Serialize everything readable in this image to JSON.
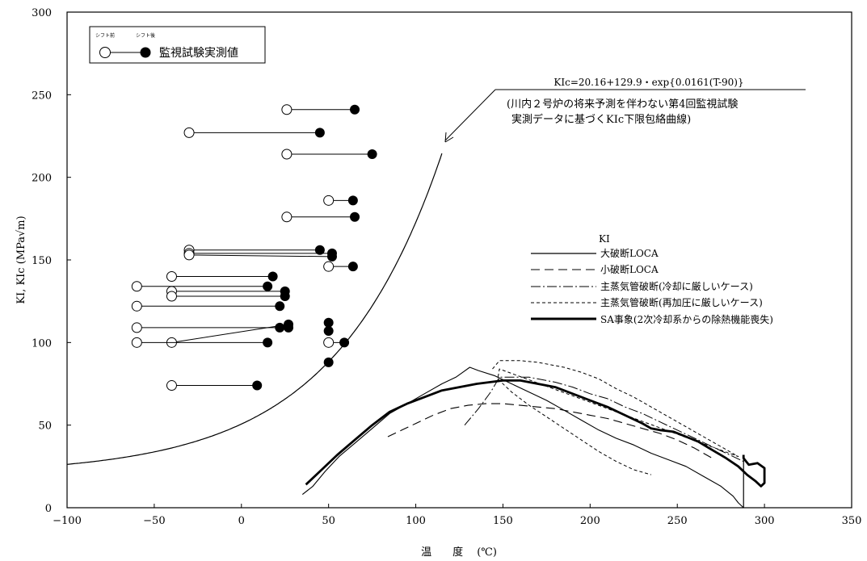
{
  "chart_data": {
    "type": "line",
    "xlabel": "温　　度　 (℃)",
    "ylabel": "KI, KIc (MPa√m)",
    "xlim": [
      -100,
      350
    ],
    "ylim": [
      0,
      300
    ],
    "x_ticks": [
      -100,
      -50,
      0,
      50,
      100,
      150,
      200,
      250,
      300,
      350
    ],
    "y_ticks": [
      0,
      50,
      100,
      150,
      200,
      250,
      300
    ],
    "grid": false,
    "surveillance_legend": {
      "label": "監視試験実測値",
      "before_label": "シフト前",
      "after_label": "シフト後"
    },
    "surveillance_data": [
      {
        "before": [
          26,
          241
        ],
        "after": [
          65,
          241
        ]
      },
      {
        "before": [
          -30,
          227
        ],
        "after": [
          45,
          227
        ]
      },
      {
        "before": [
          26,
          214
        ],
        "after": [
          75,
          214
        ]
      },
      {
        "before": [
          50,
          186
        ],
        "after": [
          64,
          186
        ]
      },
      {
        "before": [
          26,
          176
        ],
        "after": [
          65,
          176
        ]
      },
      {
        "before": [
          -30,
          156
        ],
        "after": [
          45,
          156
        ]
      },
      {
        "before": [
          -30,
          154
        ],
        "after": [
          52,
          154
        ]
      },
      {
        "before": [
          -30,
          153
        ],
        "after": [
          52,
          152
        ]
      },
      {
        "before": [
          50,
          146
        ],
        "after": [
          64,
          146
        ]
      },
      {
        "before": [
          -40,
          140
        ],
        "after": [
          18,
          140
        ]
      },
      {
        "before": [
          -60,
          134
        ],
        "after": [
          15,
          134
        ]
      },
      {
        "before": [
          -40,
          131
        ],
        "after": [
          25,
          131
        ]
      },
      {
        "before": [
          -40,
          128
        ],
        "after": [
          25,
          128
        ]
      },
      {
        "before": [
          -60,
          122
        ],
        "after": [
          22,
          122
        ]
      },
      {
        "before": [
          -60,
          109
        ],
        "after": [
          22,
          109
        ]
      },
      {
        "before": [
          -40,
          100
        ],
        "after": [
          27,
          111
        ]
      },
      {
        "before": [
          -60,
          100
        ],
        "after": [
          15,
          100
        ]
      },
      {
        "before": [
          -40,
          74
        ],
        "after": [
          9,
          74
        ]
      },
      {
        "before": [
          50,
          100
        ],
        "after": [
          59,
          100
        ]
      },
      {
        "after_only": [
          50,
          112
        ]
      },
      {
        "after_only": [
          50,
          107
        ]
      },
      {
        "after_only": [
          50,
          88
        ]
      },
      {
        "after_only": [
          27,
          109
        ]
      }
    ],
    "kic_curve": {
      "formula_label": "KIc=20.16+129.9・exp{0.0161(T-90)}",
      "note_line1": "(川内２号炉の将来予測を伴わない第4回監視試験",
      "note_line2": "実測データに基づくKIc下限包絡曲線)",
      "arrow_tip": [
        115,
        220
      ]
    },
    "legend_title": "KI",
    "series": [
      {
        "name": "大破断LOCA",
        "style": "solid-thin",
        "points": [
          [
            35,
            8
          ],
          [
            41,
            13
          ],
          [
            48,
            22
          ],
          [
            56,
            31
          ],
          [
            65,
            39
          ],
          [
            75,
            48
          ],
          [
            85,
            57
          ],
          [
            95,
            63
          ],
          [
            105,
            69
          ],
          [
            115,
            75
          ],
          [
            123,
            79
          ],
          [
            127,
            82
          ],
          [
            131,
            85
          ],
          [
            136,
            83
          ],
          [
            145,
            80
          ],
          [
            155,
            75
          ],
          [
            165,
            70
          ],
          [
            175,
            65
          ],
          [
            185,
            59
          ],
          [
            195,
            53
          ],
          [
            205,
            47
          ],
          [
            215,
            42
          ],
          [
            225,
            38
          ],
          [
            235,
            33
          ],
          [
            245,
            29
          ],
          [
            255,
            25
          ],
          [
            265,
            19
          ],
          [
            275,
            13
          ],
          [
            282,
            7
          ],
          [
            285,
            3
          ],
          [
            288,
            0
          ]
        ]
      },
      {
        "name": "小破断LOCA",
        "style": "dashed",
        "points": [
          [
            84,
            43
          ],
          [
            92,
            47
          ],
          [
            100,
            51
          ],
          [
            110,
            56
          ],
          [
            120,
            60
          ],
          [
            130,
            62
          ],
          [
            140,
            63
          ],
          [
            150,
            63
          ],
          [
            160,
            62
          ],
          [
            170,
            61
          ],
          [
            180,
            60
          ],
          [
            190,
            58
          ],
          [
            200,
            56
          ],
          [
            210,
            54
          ],
          [
            220,
            51
          ],
          [
            230,
            48
          ],
          [
            240,
            45
          ],
          [
            250,
            41
          ],
          [
            260,
            36
          ],
          [
            265,
            33
          ],
          [
            270,
            30
          ]
        ]
      },
      {
        "name": "主蒸気管破断(冷却に厳しいケース)",
        "style": "dash-dot",
        "points": [
          [
            128,
            50
          ],
          [
            136,
            60
          ],
          [
            143,
            70
          ],
          [
            148,
            79
          ],
          [
            155,
            79
          ],
          [
            165,
            79
          ],
          [
            180,
            76
          ],
          [
            190,
            73
          ],
          [
            200,
            69
          ],
          [
            210,
            66
          ],
          [
            220,
            61
          ],
          [
            230,
            57
          ],
          [
            240,
            52
          ],
          [
            250,
            47
          ],
          [
            260,
            42
          ],
          [
            270,
            37
          ],
          [
            280,
            32
          ],
          [
            288,
            28
          ]
        ]
      },
      {
        "name": "主蒸気管破断(再加圧に厳しいケース)",
        "style": "dotted",
        "points": [
          [
            144,
            84
          ],
          [
            148,
            89
          ],
          [
            160,
            89
          ],
          [
            170,
            88
          ],
          [
            185,
            85
          ],
          [
            195,
            82
          ],
          [
            205,
            78
          ],
          [
            215,
            72
          ],
          [
            225,
            67
          ],
          [
            235,
            61
          ],
          [
            245,
            55
          ],
          [
            255,
            49
          ],
          [
            265,
            43
          ],
          [
            275,
            37
          ],
          [
            285,
            31
          ],
          [
            148,
            84
          ],
          [
            147,
            78
          ],
          [
            155,
            70
          ],
          [
            165,
            62
          ],
          [
            175,
            55
          ],
          [
            185,
            48
          ],
          [
            195,
            41
          ],
          [
            205,
            34
          ],
          [
            215,
            28
          ],
          [
            225,
            23
          ],
          [
            235,
            20
          ]
        ]
      },
      {
        "name": "SA事象(2次冷却系からの除熱機能喪失)",
        "style": "solid-thick",
        "points": [
          [
            37,
            14
          ],
          [
            45,
            22
          ],
          [
            55,
            32
          ],
          [
            65,
            41
          ],
          [
            75,
            50
          ],
          [
            85,
            58
          ],
          [
            95,
            63
          ],
          [
            105,
            67
          ],
          [
            115,
            71
          ],
          [
            125,
            73
          ],
          [
            135,
            75
          ],
          [
            150,
            77
          ],
          [
            160,
            77
          ],
          [
            170,
            75
          ],
          [
            180,
            73
          ],
          [
            190,
            69
          ],
          [
            200,
            65
          ],
          [
            210,
            61
          ],
          [
            220,
            56
          ],
          [
            230,
            51
          ],
          [
            235,
            48
          ],
          [
            240,
            47
          ],
          [
            248,
            46
          ],
          [
            255,
            43
          ],
          [
            262,
            40
          ],
          [
            270,
            35
          ],
          [
            278,
            30
          ],
          [
            285,
            25
          ],
          [
            290,
            20
          ],
          [
            295,
            16
          ],
          [
            298,
            13
          ],
          [
            300,
            15
          ],
          [
            300,
            24
          ],
          [
            296,
            27
          ],
          [
            291,
            26
          ],
          [
            288,
            30
          ],
          [
            288,
            32
          ]
        ]
      }
    ]
  }
}
